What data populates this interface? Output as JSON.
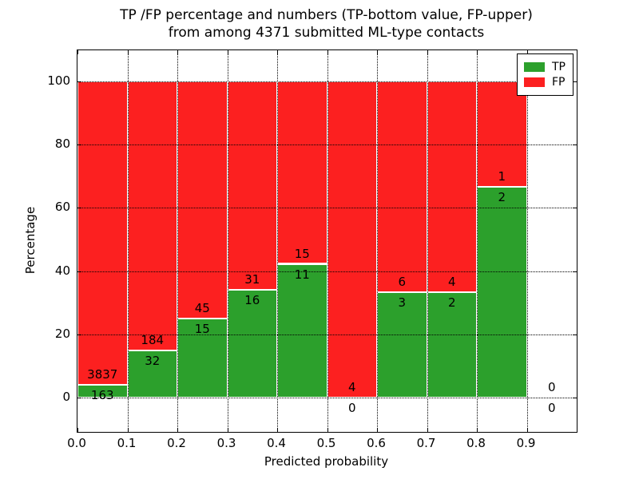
{
  "title": {
    "line1": "TP /FP percentage and numbers (TP-bottom value, FP-upper)",
    "line2": "from among 4371 submitted ML-type contacts"
  },
  "axes": {
    "xlabel": "Predicted probability",
    "ylabel": "Percentage",
    "x_tick_labels": [
      "0.0",
      "0.1",
      "0.2",
      "0.3",
      "0.4",
      "0.5",
      "0.6",
      "0.7",
      "0.8",
      "0.9"
    ],
    "y_tick_labels": [
      "0",
      "20",
      "40",
      "60",
      "80",
      "100"
    ]
  },
  "legend": {
    "items": [
      {
        "label": "TP",
        "color": "#2ca02c"
      },
      {
        "label": "FP",
        "color": "#fc2020"
      }
    ]
  },
  "chart_data": {
    "type": "bar",
    "variant": "stacked-percentage",
    "title": "TP /FP percentage and numbers (TP-bottom value, FP-upper) from among 4371 submitted ML-type contacts",
    "xlabel": "Predicted probability",
    "ylabel": "Percentage",
    "total_contacts": 4371,
    "xlim": [
      0.0,
      1.0
    ],
    "ylim": [
      -10.8,
      109.8
    ],
    "x_ticks": [
      0.0,
      0.1,
      0.2,
      0.3,
      0.4,
      0.5,
      0.6,
      0.7,
      0.8,
      0.9
    ],
    "y_ticks": [
      0,
      20,
      40,
      60,
      80,
      100
    ],
    "grid": "dotted",
    "legend_position": "upper right",
    "bin_width": 0.1,
    "colors": {
      "tp": "#2ca02c",
      "fp": "#fc2020"
    },
    "bins": [
      {
        "x0": 0.0,
        "x1": 0.1,
        "tp_count": 163,
        "fp_count": 3837,
        "tp_pct": 4.075,
        "fp_pct": 95.925,
        "has_bar": true
      },
      {
        "x0": 0.1,
        "x1": 0.2,
        "tp_count": 32,
        "fp_count": 184,
        "tp_pct": 14.815,
        "fp_pct": 85.185,
        "has_bar": true
      },
      {
        "x0": 0.2,
        "x1": 0.3,
        "tp_count": 15,
        "fp_count": 45,
        "tp_pct": 25.0,
        "fp_pct": 75.0,
        "has_bar": true
      },
      {
        "x0": 0.3,
        "x1": 0.4,
        "tp_count": 16,
        "fp_count": 31,
        "tp_pct": 34.043,
        "fp_pct": 65.957,
        "has_bar": true
      },
      {
        "x0": 0.4,
        "x1": 0.5,
        "tp_count": 11,
        "fp_count": 15,
        "tp_pct": 42.308,
        "fp_pct": 57.692,
        "has_bar": true
      },
      {
        "x0": 0.5,
        "x1": 0.6,
        "tp_count": 0,
        "fp_count": 4,
        "tp_pct": 0.0,
        "fp_pct": 100.0,
        "has_bar": true
      },
      {
        "x0": 0.6,
        "x1": 0.7,
        "tp_count": 3,
        "fp_count": 6,
        "tp_pct": 33.333,
        "fp_pct": 66.667,
        "has_bar": true
      },
      {
        "x0": 0.7,
        "x1": 0.8,
        "tp_count": 2,
        "fp_count": 4,
        "tp_pct": 33.333,
        "fp_pct": 66.667,
        "has_bar": true
      },
      {
        "x0": 0.8,
        "x1": 0.9,
        "tp_count": 2,
        "fp_count": 1,
        "tp_pct": 66.667,
        "fp_pct": 33.333,
        "has_bar": true
      },
      {
        "x0": 0.9,
        "x1": 1.0,
        "tp_count": 0,
        "fp_count": 0,
        "tp_pct": 0.0,
        "fp_pct": 0.0,
        "has_bar": false
      }
    ]
  }
}
